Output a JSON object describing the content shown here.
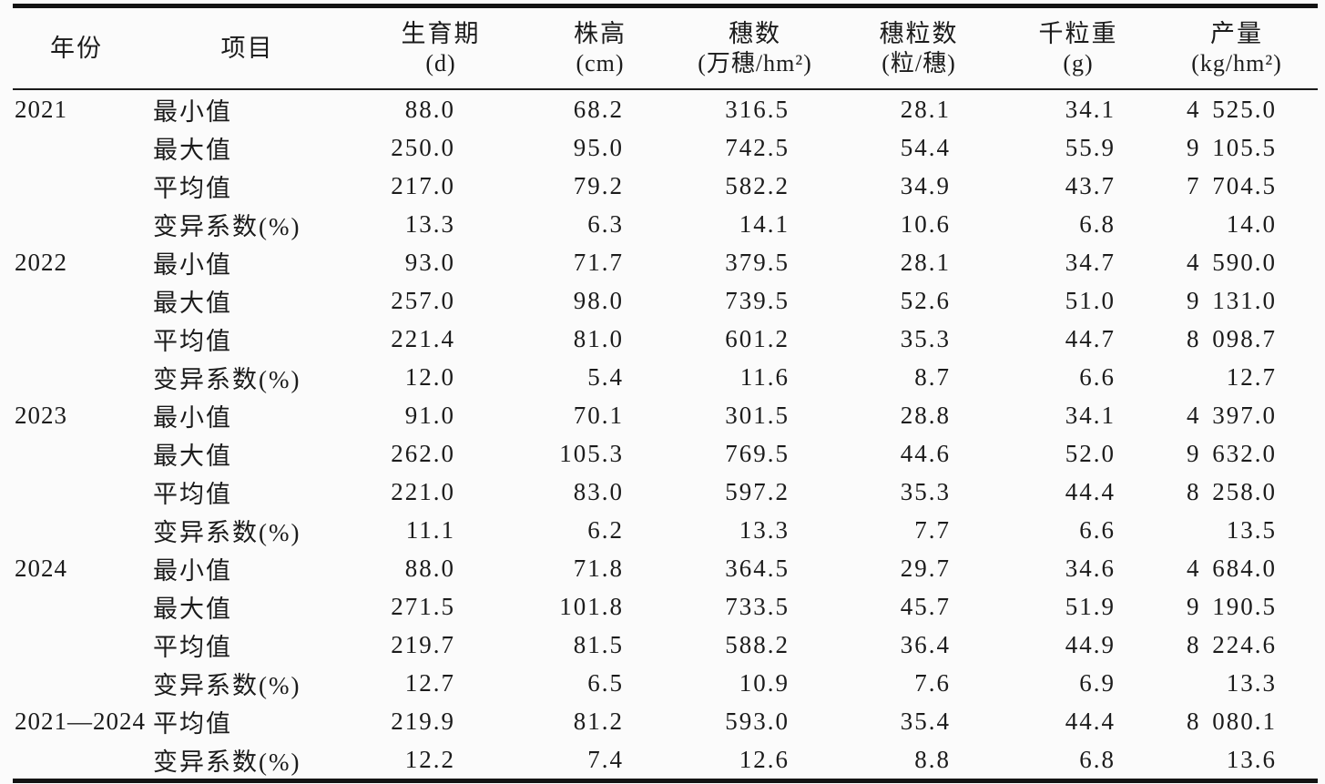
{
  "table": {
    "columns": [
      {
        "id": "year",
        "label": "年份",
        "unit": ""
      },
      {
        "id": "item",
        "label": "项目",
        "unit": ""
      },
      {
        "id": "growth-period",
        "label": "生育期",
        "unit": "(d)"
      },
      {
        "id": "plant-height",
        "label": "株高",
        "unit": "(cm)"
      },
      {
        "id": "spike-number",
        "label": "穗数",
        "unit": "(万穗/hm²)"
      },
      {
        "id": "grains-per-spike",
        "label": "穗粒数",
        "unit": "(粒/穗)"
      },
      {
        "id": "thousand-grain-weight",
        "label": "千粒重",
        "unit": "(g)"
      },
      {
        "id": "yield",
        "label": "产量",
        "unit": "(kg/hm²)"
      }
    ],
    "rows": [
      {
        "year": "2021",
        "item": "最小值",
        "values": [
          "88.0",
          "68.2",
          "316.5",
          "28.1",
          "34.1",
          "4 525.0"
        ]
      },
      {
        "year": "",
        "item": "最大值",
        "values": [
          "250.0",
          "95.0",
          "742.5",
          "54.4",
          "55.9",
          "9 105.5"
        ]
      },
      {
        "year": "",
        "item": "平均值",
        "values": [
          "217.0",
          "79.2",
          "582.2",
          "34.9",
          "43.7",
          "7 704.5"
        ]
      },
      {
        "year": "",
        "item": "变异系数(%)",
        "values": [
          "13.3",
          "6.3",
          "14.1",
          "10.6",
          "6.8",
          "14.0"
        ]
      },
      {
        "year": "2022",
        "item": "最小值",
        "values": [
          "93.0",
          "71.7",
          "379.5",
          "28.1",
          "34.7",
          "4 590.0"
        ]
      },
      {
        "year": "",
        "item": "最大值",
        "values": [
          "257.0",
          "98.0",
          "739.5",
          "52.6",
          "51.0",
          "9 131.0"
        ]
      },
      {
        "year": "",
        "item": "平均值",
        "values": [
          "221.4",
          "81.0",
          "601.2",
          "35.3",
          "44.7",
          "8 098.7"
        ]
      },
      {
        "year": "",
        "item": "变异系数(%)",
        "values": [
          "12.0",
          "5.4",
          "11.6",
          "8.7",
          "6.6",
          "12.7"
        ]
      },
      {
        "year": "2023",
        "item": "最小值",
        "values": [
          "91.0",
          "70.1",
          "301.5",
          "28.8",
          "34.1",
          "4 397.0"
        ]
      },
      {
        "year": "",
        "item": "最大值",
        "values": [
          "262.0",
          "105.3",
          "769.5",
          "44.6",
          "52.0",
          "9 632.0"
        ]
      },
      {
        "year": "",
        "item": "平均值",
        "values": [
          "221.0",
          "83.0",
          "597.2",
          "35.3",
          "44.4",
          "8 258.0"
        ]
      },
      {
        "year": "",
        "item": "变异系数(%)",
        "values": [
          "11.1",
          "6.2",
          "13.3",
          "7.7",
          "6.6",
          "13.5"
        ]
      },
      {
        "year": "2024",
        "item": "最小值",
        "values": [
          "88.0",
          "71.8",
          "364.5",
          "29.7",
          "34.6",
          "4 684.0"
        ]
      },
      {
        "year": "",
        "item": "最大值",
        "values": [
          "271.5",
          "101.8",
          "733.5",
          "45.7",
          "51.9",
          "9 190.5"
        ]
      },
      {
        "year": "",
        "item": "平均值",
        "values": [
          "219.7",
          "81.5",
          "588.2",
          "36.4",
          "44.9",
          "8 224.6"
        ]
      },
      {
        "year": "",
        "item": "变异系数(%)",
        "values": [
          "12.7",
          "6.5",
          "10.9",
          "7.6",
          "6.9",
          "13.3"
        ]
      },
      {
        "year": "2021—2024",
        "item": "平均值",
        "values": [
          "219.9",
          "81.2",
          "593.0",
          "35.4",
          "44.4",
          "8 080.1"
        ]
      },
      {
        "year": "",
        "item": "变异系数(%)",
        "values": [
          "12.2",
          "7.4",
          "12.6",
          "8.8",
          "6.8",
          "13.6"
        ]
      }
    ],
    "ink_color": "#1b1b1b",
    "background_color": "#fbfbfb"
  }
}
